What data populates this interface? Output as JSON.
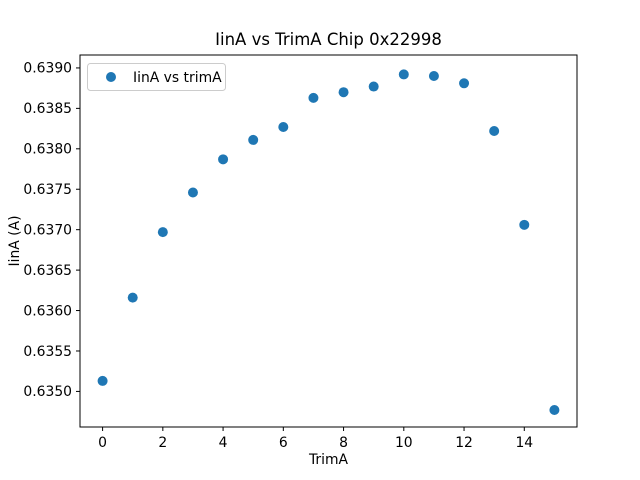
{
  "chart_data": {
    "type": "scatter",
    "title": "IinA vs TrimA Chip 0x22998",
    "xlabel": "TrimA",
    "ylabel": "IinA (A)",
    "legend": [
      {
        "label": "IinA vs trimA",
        "marker": "circle",
        "marker_color": "#1f77b4"
      }
    ],
    "legend_position": "upper left",
    "grid": false,
    "marker_color": "#1f77b4",
    "x": [
      0,
      1,
      2,
      3,
      4,
      5,
      6,
      7,
      8,
      9,
      10,
      11,
      12,
      13,
      14,
      15
    ],
    "y": [
      0.63513,
      0.63616,
      0.63697,
      0.63746,
      0.63787,
      0.63811,
      0.63827,
      0.63863,
      0.6387,
      0.63877,
      0.63892,
      0.6389,
      0.63881,
      0.63822,
      0.63706,
      0.63477
    ],
    "xlim": [
      -0.75,
      15.75
    ],
    "ylim": [
      0.63456,
      0.63916
    ],
    "x_ticks": [
      0,
      2,
      4,
      6,
      8,
      10,
      12,
      14
    ],
    "x_tick_labels": [
      "0",
      "2",
      "4",
      "6",
      "8",
      "10",
      "12",
      "14"
    ],
    "y_ticks": [
      0.635,
      0.6355,
      0.636,
      0.6365,
      0.637,
      0.6375,
      0.638,
      0.6385,
      0.639
    ],
    "y_tick_labels": [
      "0.6350",
      "0.6355",
      "0.6360",
      "0.6365",
      "0.6370",
      "0.6375",
      "0.6380",
      "0.6385",
      "0.6390"
    ],
    "axis_color": "#000000",
    "legend_edge_color": "#cccccc"
  }
}
